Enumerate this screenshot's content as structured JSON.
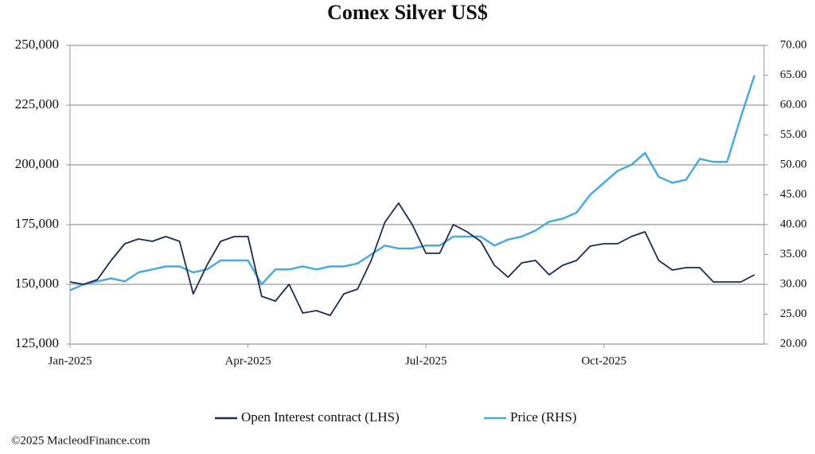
{
  "chart_data": {
    "type": "line",
    "title": "Comex Silver US$",
    "footer": "©2025 MacleodFinance.com",
    "categories": [
      "Jan-2025",
      null,
      null,
      null,
      null,
      null,
      null,
      null,
      null,
      null,
      null,
      null,
      null,
      "Apr-2025",
      null,
      null,
      null,
      null,
      null,
      null,
      null,
      null,
      null,
      null,
      null,
      null,
      "Jul-2025",
      null,
      null,
      null,
      null,
      null,
      null,
      null,
      null,
      null,
      null,
      null,
      null,
      "Oct-2025",
      null,
      null,
      null,
      null,
      null,
      null,
      null,
      null,
      null,
      null,
      null
    ],
    "series": [
      {
        "name": "Open Interest contract (LHS)",
        "color": "#1f2a4d",
        "axis": "y",
        "values": [
          151000,
          150000,
          152000,
          160000,
          167000,
          169000,
          168000,
          170000,
          168000,
          146000,
          158000,
          168000,
          170000,
          170000,
          145000,
          143000,
          150000,
          138000,
          139000,
          137000,
          146000,
          148000,
          160000,
          176000,
          184000,
          175000,
          163000,
          163000,
          175000,
          172000,
          168000,
          158000,
          153000,
          159000,
          160000,
          154000,
          158000,
          160000,
          166000,
          167000,
          167000,
          170000,
          172000,
          160000,
          156000,
          157000,
          157000,
          151000,
          151000,
          151000,
          154000
        ]
      },
      {
        "name": "Price (RHS)",
        "color": "#4aabdb",
        "axis": "y2",
        "values": [
          29,
          30,
          30.5,
          31,
          30.5,
          32,
          32.5,
          33,
          33,
          32,
          32.5,
          34,
          34,
          34,
          30,
          32.5,
          32.5,
          33,
          32.5,
          33,
          33,
          33.5,
          35,
          36.5,
          36,
          36,
          36.5,
          36.5,
          38,
          38,
          38,
          36.5,
          37.5,
          38,
          39,
          40.5,
          41,
          42,
          45,
          47,
          49,
          50,
          52,
          48,
          47,
          47.5,
          51,
          50.5,
          50.5,
          58,
          65
        ]
      }
    ],
    "ylim": [
      125000,
      250000
    ],
    "yticks": [
      {
        "value": 125000,
        "label": "125,000"
      },
      {
        "value": 150000,
        "label": "150,000"
      },
      {
        "value": 175000,
        "label": "175,000"
      },
      {
        "value": 200000,
        "label": "200,000"
      },
      {
        "value": 225000,
        "label": "225,000"
      },
      {
        "value": 250000,
        "label": "250,000"
      }
    ],
    "y2lim": [
      20,
      70
    ],
    "y2ticks": [
      {
        "value": 20,
        "label": "20.00"
      },
      {
        "value": 25,
        "label": "25.00"
      },
      {
        "value": 30,
        "label": "30.00"
      },
      {
        "value": 35,
        "label": "35.00"
      },
      {
        "value": 40,
        "label": "40.00"
      },
      {
        "value": 45,
        "label": "45.00"
      },
      {
        "value": 50,
        "label": "50.00"
      },
      {
        "value": 55,
        "label": "55.00"
      },
      {
        "value": 60,
        "label": "60.00"
      },
      {
        "value": 65,
        "label": "65.00"
      },
      {
        "value": 70,
        "label": "70.00"
      }
    ],
    "grid": true
  }
}
